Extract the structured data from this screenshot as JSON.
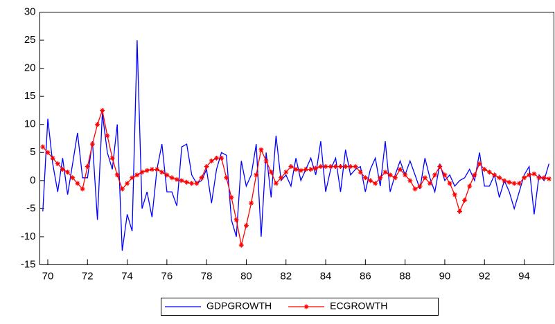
{
  "chart_data": {
    "type": "line",
    "x": [
      69.75,
      70,
      70.25,
      70.5,
      70.75,
      71,
      71.25,
      71.5,
      71.75,
      72,
      72.25,
      72.5,
      72.75,
      73,
      73.25,
      73.5,
      73.75,
      74,
      74.25,
      74.5,
      74.75,
      75,
      75.25,
      75.5,
      75.75,
      76,
      76.25,
      76.5,
      76.75,
      77,
      77.25,
      77.5,
      77.75,
      78,
      78.25,
      78.5,
      78.75,
      79,
      79.25,
      79.5,
      79.75,
      80,
      80.25,
      80.5,
      80.75,
      81,
      81.25,
      81.5,
      81.75,
      82,
      82.25,
      82.5,
      82.75,
      83,
      83.25,
      83.5,
      83.75,
      84,
      84.25,
      84.5,
      84.75,
      85,
      85.25,
      85.5,
      85.75,
      86,
      86.25,
      86.5,
      86.75,
      87,
      87.25,
      87.5,
      87.75,
      88,
      88.25,
      88.5,
      88.75,
      89,
      89.25,
      89.5,
      89.75,
      90,
      90.25,
      90.5,
      90.75,
      91,
      91.25,
      91.5,
      91.75,
      92,
      92.25,
      92.5,
      92.75,
      93,
      93.25,
      93.5,
      93.75,
      94,
      94.25,
      94.5,
      94.75,
      95,
      95.25
    ],
    "series": [
      {
        "name": "GDPGROWTH",
        "color": "#0000ff",
        "marker": false,
        "values": [
          -5.5,
          11,
          3,
          -2,
          4,
          -2.5,
          3,
          8.5,
          0.5,
          0.5,
          7,
          -7,
          12,
          5,
          2,
          10,
          -12.5,
          -6,
          -9,
          25,
          -5,
          -2,
          -6.5,
          2,
          6.5,
          -2,
          -2,
          -4.5,
          6,
          6.5,
          1,
          -0.5,
          0,
          2,
          -4,
          2,
          5,
          4.5,
          -7,
          -10,
          3.5,
          -1,
          1,
          6.5,
          -10,
          5,
          -3,
          8,
          0,
          1,
          -1,
          4,
          0,
          2,
          4,
          1,
          7,
          -2,
          2,
          4,
          -2,
          5.5,
          1,
          2,
          2.5,
          -2,
          2,
          4,
          -1,
          7,
          -2,
          1,
          3.5,
          1,
          3.5,
          1,
          -1.5,
          4,
          0.5,
          -2,
          3,
          0,
          1,
          -1,
          0,
          0.5,
          2,
          0,
          5,
          -1,
          -1,
          1,
          -3,
          0,
          -2,
          -5,
          -2,
          1,
          2.5,
          -6,
          1,
          0,
          3
        ]
      },
      {
        "name": "ECGROWTH",
        "color": "#ff0000",
        "marker": true,
        "values": [
          6,
          5,
          4,
          3,
          2,
          1.5,
          0.5,
          -0.5,
          -1.5,
          2.5,
          6.5,
          10,
          12.5,
          8,
          4,
          1,
          -1.5,
          -0.5,
          0.5,
          1,
          1.5,
          1.8,
          2,
          2,
          1.5,
          1,
          0.5,
          0.2,
          0,
          -0.3,
          -0.5,
          -0.5,
          0.5,
          2.5,
          3.5,
          4,
          4,
          0.5,
          -3,
          -7,
          -11.5,
          -8,
          -4,
          1,
          5.5,
          3.5,
          1.5,
          -0.5,
          0.5,
          1.5,
          2.5,
          2,
          1.8,
          2,
          2,
          2.2,
          2.5,
          2.5,
          2.5,
          2.5,
          2.5,
          2.5,
          2.5,
          2.5,
          1.5,
          0.5,
          0,
          -0.5,
          0.5,
          1.5,
          1,
          0.5,
          2,
          1,
          0,
          -1.5,
          -1,
          0.5,
          -0.5,
          1,
          2.5,
          1,
          -0.5,
          -2.5,
          -5.5,
          -3.5,
          -1,
          1,
          3,
          2,
          1.5,
          1,
          0.5,
          0,
          -0.3,
          -0.5,
          -0.5,
          0.5,
          1,
          1.2,
          0.5,
          0.5,
          0.3
        ]
      }
    ],
    "xlim": [
      69.6,
      95.5
    ],
    "xticks": [
      70,
      72,
      74,
      76,
      78,
      80,
      82,
      84,
      86,
      88,
      90,
      92,
      94
    ],
    "ylim": [
      -15,
      30
    ],
    "yticks": [
      -15,
      -10,
      -5,
      0,
      5,
      10,
      15,
      20,
      25,
      30
    ],
    "grid": false,
    "legend": "bottom"
  }
}
